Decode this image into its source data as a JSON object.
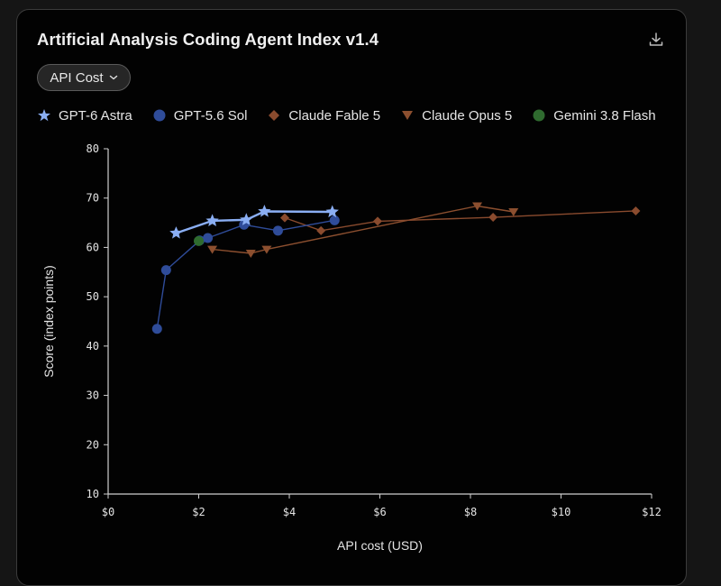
{
  "header": {
    "title": "Artificial Analysis Coding Agent Index v1.4",
    "dropdown_label": "API Cost"
  },
  "icons": {
    "download": "download-icon",
    "dropdown": "chevron-down-icon"
  },
  "colors": {
    "background": "#020202",
    "gpt6": "#8aaef3",
    "gpt56": "#2f4c99",
    "fable": "#8a4b2e",
    "opus": "#8c4f2f",
    "gemini": "#2f6b2f"
  },
  "chart_data": {
    "type": "scatter",
    "title": "Artificial Analysis Coding Agent Index v1.4",
    "xlabel": "API cost (USD)",
    "ylabel": "Score (index points)",
    "xlim": [
      0,
      12
    ],
    "ylim": [
      10,
      80
    ],
    "xticks": [
      "$0",
      "$2",
      "$4",
      "$6",
      "$8",
      "$10",
      "$12"
    ],
    "yticks": [
      "10",
      "20",
      "30",
      "40",
      "50",
      "60",
      "70",
      "80"
    ],
    "grid": false,
    "legend_position": "top",
    "series": [
      {
        "name": "GPT-6 Astra",
        "marker": "star",
        "color": "#8aaef3",
        "points": [
          [
            1.5,
            62.9
          ],
          [
            2.3,
            65.4
          ],
          [
            3.05,
            65.6
          ],
          [
            3.45,
            67.3
          ],
          [
            4.95,
            67.2
          ]
        ]
      },
      {
        "name": "GPT-5.6 Sol",
        "marker": "circle",
        "color": "#2f4c99",
        "points": [
          [
            1.08,
            43.5
          ],
          [
            1.28,
            55.4
          ],
          [
            2.02,
            61.4
          ],
          [
            2.2,
            61.9
          ],
          [
            3.0,
            64.6
          ],
          [
            3.75,
            63.4
          ],
          [
            5.0,
            65.5
          ]
        ]
      },
      {
        "name": "Claude Fable 5",
        "marker": "diamond",
        "color": "#8a4b2e",
        "points": [
          [
            3.9,
            66.0
          ],
          [
            4.7,
            63.4
          ],
          [
            5.95,
            65.3
          ],
          [
            8.5,
            66.1
          ],
          [
            11.65,
            67.4
          ]
        ]
      },
      {
        "name": "Claude Opus 5",
        "marker": "triangle-down",
        "color": "#8c4f2f",
        "points": [
          [
            2.3,
            59.6
          ],
          [
            3.15,
            58.8
          ],
          [
            3.5,
            59.6
          ],
          [
            8.15,
            68.4
          ],
          [
            8.95,
            67.2
          ]
        ]
      },
      {
        "name": "Gemini 3.8 Flash",
        "marker": "circle",
        "color": "#2f6b2f",
        "points": [
          [
            2.0,
            61.3
          ]
        ]
      }
    ]
  }
}
